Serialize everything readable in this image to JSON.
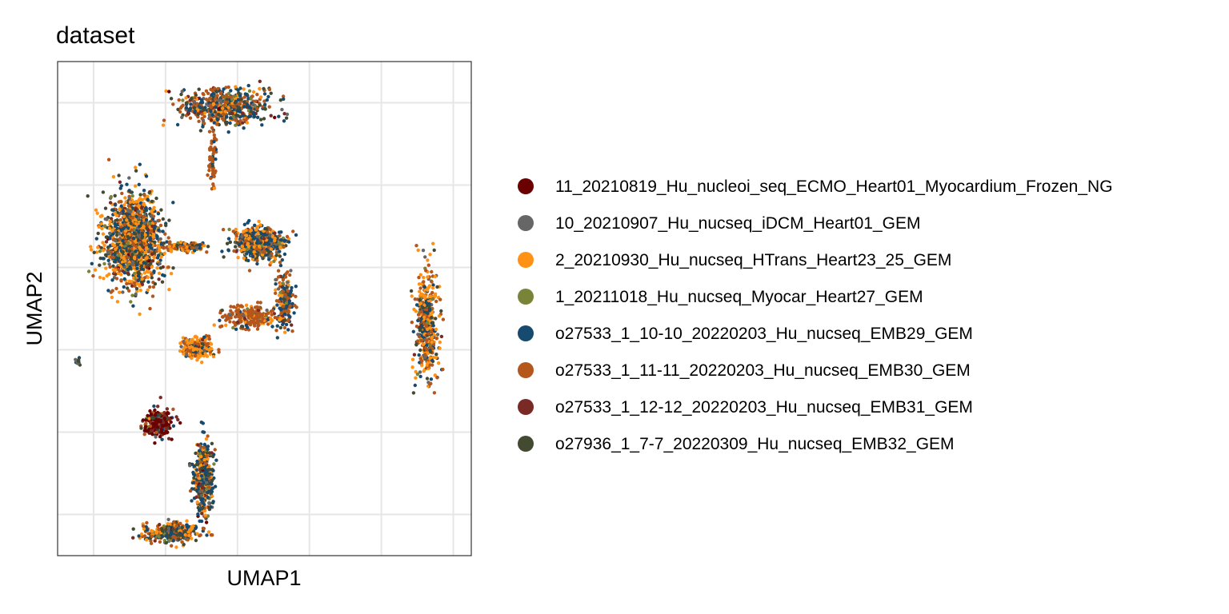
{
  "chart_data": {
    "type": "scatter",
    "title": "dataset",
    "xlabel": "UMAP1",
    "ylabel": "UMAP2",
    "xlim": [
      -8,
      15
    ],
    "ylim": [
      -10,
      14
    ],
    "grid": true,
    "ticks_shown": false,
    "legend_placement": "right",
    "background": "#ffffff",
    "grid_color": "#e6e6e6",
    "series": [
      {
        "name": "11_20210819_Hu_nucleoi_seq_ECMO_Heart01_Myocardium_Frozen_NG",
        "color": "#6b0000"
      },
      {
        "name": "10_20210907_Hu_nucseq_iDCM_Heart01_GEM",
        "color": "#666666"
      },
      {
        "name": "2_20210930_Hu_nucseq_HTrans_Heart23_25_GEM",
        "color": "#ff9214"
      },
      {
        "name": "1_20211018_Hu_nucseq_Myocar_Heart27_GEM",
        "color": "#7a8439"
      },
      {
        "name": "o27533_1_10-10_20220203_Hu_nucseq_EMB29_GEM",
        "color": "#164a6e"
      },
      {
        "name": "o27533_1_11-11_20220203_Hu_nucseq_EMB30_GEM",
        "color": "#b5561c"
      },
      {
        "name": "o27533_1_12-12_20220203_Hu_nucseq_EMB31_GEM",
        "color": "#7a2a25"
      },
      {
        "name": "o27936_1_7-7_20220309_Hu_nucseq_EMB32_GEM",
        "color": "#434a32"
      }
    ],
    "clusters": [
      {
        "label": "top-fan",
        "center": [
          1.2,
          11.8
        ],
        "spread": [
          2.6,
          0.9
        ],
        "n": 520,
        "weights": [
          0.01,
          0.05,
          0.1,
          0.05,
          0.2,
          0.35,
          0.04,
          0.2
        ]
      },
      {
        "label": "top-stalk",
        "center": [
          0.6,
          9.2
        ],
        "spread": [
          0.25,
          1.6
        ],
        "n": 60,
        "weights": [
          0.0,
          0.0,
          0.05,
          0.0,
          0.05,
          0.85,
          0.0,
          0.05
        ]
      },
      {
        "label": "left-mass",
        "center": [
          -3.8,
          5.3
        ],
        "spread": [
          1.6,
          2.3
        ],
        "n": 1300,
        "weights": [
          0.01,
          0.06,
          0.3,
          0.05,
          0.2,
          0.18,
          0.04,
          0.16
        ]
      },
      {
        "label": "left-bridge",
        "center": [
          -0.8,
          5.0
        ],
        "spread": [
          1.2,
          0.25
        ],
        "n": 120,
        "weights": [
          0.0,
          0.05,
          0.3,
          0.05,
          0.2,
          0.3,
          0.0,
          0.1
        ]
      },
      {
        "label": "center-right-mass",
        "center": [
          3.2,
          5.2
        ],
        "spread": [
          1.5,
          0.75
        ],
        "n": 650,
        "weights": [
          0.0,
          0.06,
          0.28,
          0.04,
          0.28,
          0.18,
          0.02,
          0.14
        ]
      },
      {
        "label": "center-right-tail",
        "center": [
          4.6,
          2.4
        ],
        "spread": [
          0.5,
          1.5
        ],
        "n": 180,
        "weights": [
          0.0,
          0.05,
          0.1,
          0.02,
          0.25,
          0.45,
          0.03,
          0.1
        ]
      },
      {
        "label": "center-band",
        "center": [
          2.6,
          1.6
        ],
        "spread": [
          1.4,
          0.55
        ],
        "n": 230,
        "weights": [
          0.0,
          0.03,
          0.1,
          0.02,
          0.05,
          0.75,
          0.02,
          0.03
        ]
      },
      {
        "label": "center-blob",
        "center": [
          -0.2,
          0.1
        ],
        "spread": [
          0.8,
          0.45
        ],
        "n": 260,
        "weights": [
          0.0,
          0.03,
          0.55,
          0.02,
          0.12,
          0.2,
          0.02,
          0.06
        ]
      },
      {
        "label": "far-left-dot",
        "center": [
          -6.9,
          -0.6
        ],
        "spread": [
          0.12,
          0.12
        ],
        "n": 12,
        "weights": [
          0.0,
          0.3,
          0.0,
          0.0,
          0.3,
          0.0,
          0.0,
          0.4
        ]
      },
      {
        "label": "right-arc",
        "center": [
          12.5,
          1.2
        ],
        "spread": [
          0.6,
          2.6
        ],
        "n": 450,
        "weights": [
          0.0,
          0.05,
          0.3,
          0.05,
          0.2,
          0.25,
          0.02,
          0.13
        ]
      },
      {
        "label": "bottom-top",
        "center": [
          -2.4,
          -3.6
        ],
        "spread": [
          0.8,
          0.6
        ],
        "n": 260,
        "weights": [
          0.55,
          0.03,
          0.05,
          0.02,
          0.08,
          0.07,
          0.15,
          0.05
        ]
      },
      {
        "label": "bottom-spine",
        "center": [
          0.1,
          -6.2
        ],
        "spread": [
          0.5,
          1.7
        ],
        "n": 450,
        "weights": [
          0.02,
          0.06,
          0.2,
          0.05,
          0.3,
          0.12,
          0.05,
          0.2
        ]
      },
      {
        "label": "bottom-foot",
        "center": [
          -1.5,
          -8.9
        ],
        "spread": [
          1.6,
          0.45
        ],
        "n": 380,
        "weights": [
          0.01,
          0.06,
          0.25,
          0.05,
          0.2,
          0.25,
          0.03,
          0.15
        ]
      }
    ]
  }
}
